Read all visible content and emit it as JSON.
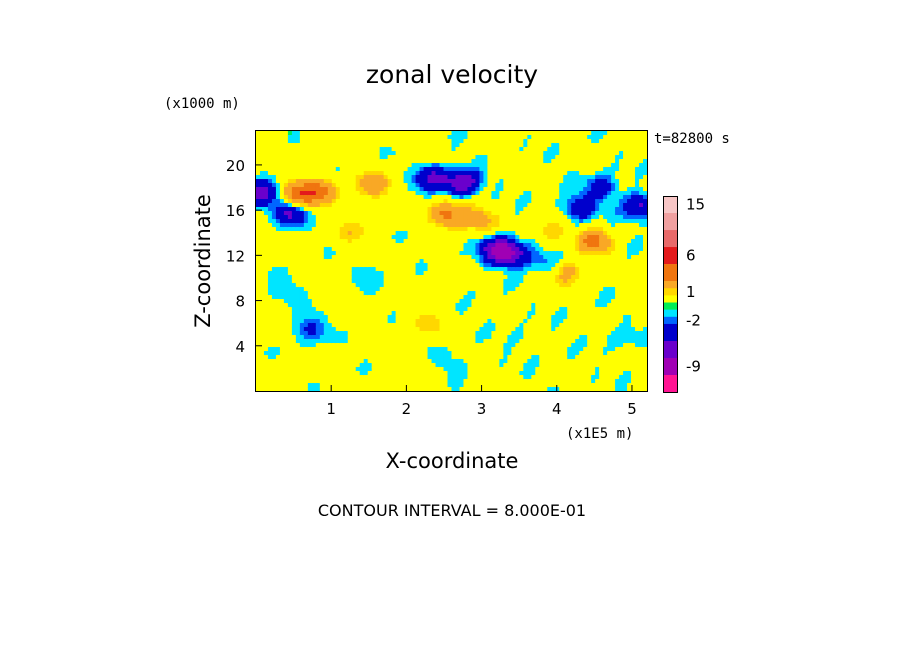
{
  "chart_data": {
    "type": "heatmap",
    "title": "zonal velocity",
    "xlabel": "X-coordinate",
    "ylabel": "Z-coordinate",
    "x_unit": "(x1E5 m)",
    "y_unit": "(x1000 m)",
    "time_stamp": "t=82800 s",
    "xlim": [
      0,
      5.2
    ],
    "ylim": [
      0,
      23
    ],
    "x_ticks": [
      "1",
      "2",
      "3",
      "4",
      "5"
    ],
    "x_tick_values": [
      1,
      2,
      3,
      4,
      5
    ],
    "y_ticks": [
      "4",
      "8",
      "12",
      "16",
      "20"
    ],
    "y_tick_values": [
      4,
      8,
      12,
      16,
      20
    ],
    "grid": false,
    "contour_interval_label": "CONTOUR INTERVAL = 8.000E-01",
    "colorbar": {
      "tick_labels": [
        "15",
        "6",
        "1",
        "-2",
        "-9"
      ],
      "tick_values": [
        15,
        6,
        1,
        -2,
        -9
      ],
      "levels": [
        {
          "value": 15,
          "color": "#f7c6c6"
        },
        {
          "value": 12,
          "color": "#f0a0a0"
        },
        {
          "value": 9,
          "color": "#e86a6a"
        },
        {
          "value": 6,
          "color": "#e31a1c"
        },
        {
          "value": 4,
          "color": "#f0750f"
        },
        {
          "value": 2,
          "color": "#f9a825"
        },
        {
          "value": 1.2,
          "color": "#ffd700"
        },
        {
          "value": 0.4,
          "color": "#ffff00"
        },
        {
          "value": -0.4,
          "color": "#00ee55"
        },
        {
          "value": -1.2,
          "color": "#00e5ff"
        },
        {
          "value": -2,
          "color": "#0066ff"
        },
        {
          "value": -4,
          "color": "#0000cc"
        },
        {
          "value": -6,
          "color": "#6a00cc"
        },
        {
          "value": -9,
          "color": "#a000b4"
        },
        {
          "value": -12,
          "color": "#ff1493"
        }
      ]
    },
    "field_features": [
      {
        "x": 0.55,
        "z": 17.4,
        "value": 5.5
      },
      {
        "x": 0.85,
        "z": 17.6,
        "value": 4.5
      },
      {
        "x": 1.55,
        "z": 18.2,
        "value": 3.5
      },
      {
        "x": 2.55,
        "z": 15.6,
        "value": 5.0
      },
      {
        "x": 2.95,
        "z": 15.2,
        "value": 3.0
      },
      {
        "x": 4.5,
        "z": 13.2,
        "value": 4.5
      },
      {
        "x": 4.15,
        "z": 10.5,
        "value": 2.5
      },
      {
        "x": 2.25,
        "z": 6.0,
        "value": 1.8
      },
      {
        "x": 3.9,
        "z": 14.2,
        "value": 2.2
      },
      {
        "x": 1.25,
        "z": 14.0,
        "value": 1.6
      },
      {
        "x": 0.05,
        "z": 17.5,
        "value": -5.5
      },
      {
        "x": 0.45,
        "z": 15.8,
        "value": -4.5
      },
      {
        "x": 2.35,
        "z": 18.9,
        "value": -4.5
      },
      {
        "x": 2.75,
        "z": 18.4,
        "value": -6.0
      },
      {
        "x": 3.2,
        "z": 12.5,
        "value": -5.5
      },
      {
        "x": 3.4,
        "z": 12.1,
        "value": -4.8
      },
      {
        "x": 4.3,
        "z": 16.2,
        "value": -3.5
      },
      {
        "x": 4.6,
        "z": 18.0,
        "value": -3.0
      },
      {
        "x": 5.1,
        "z": 16.3,
        "value": -4.5
      },
      {
        "x": 3.8,
        "z": 11.6,
        "value": -2.0
      },
      {
        "x": 0.7,
        "z": 5.5,
        "value": -2.5
      },
      {
        "x": 4.9,
        "z": 4.5,
        "value": -1.0
      },
      {
        "x": 1.5,
        "z": 10.5,
        "value": -0.8
      },
      {
        "x": 0.35,
        "z": 9.0,
        "value": -1.2
      },
      {
        "x": 2.6,
        "z": 2.5,
        "value": -0.8
      },
      {
        "x": 3.6,
        "z": 4.5,
        "value": -0.7
      }
    ]
  }
}
